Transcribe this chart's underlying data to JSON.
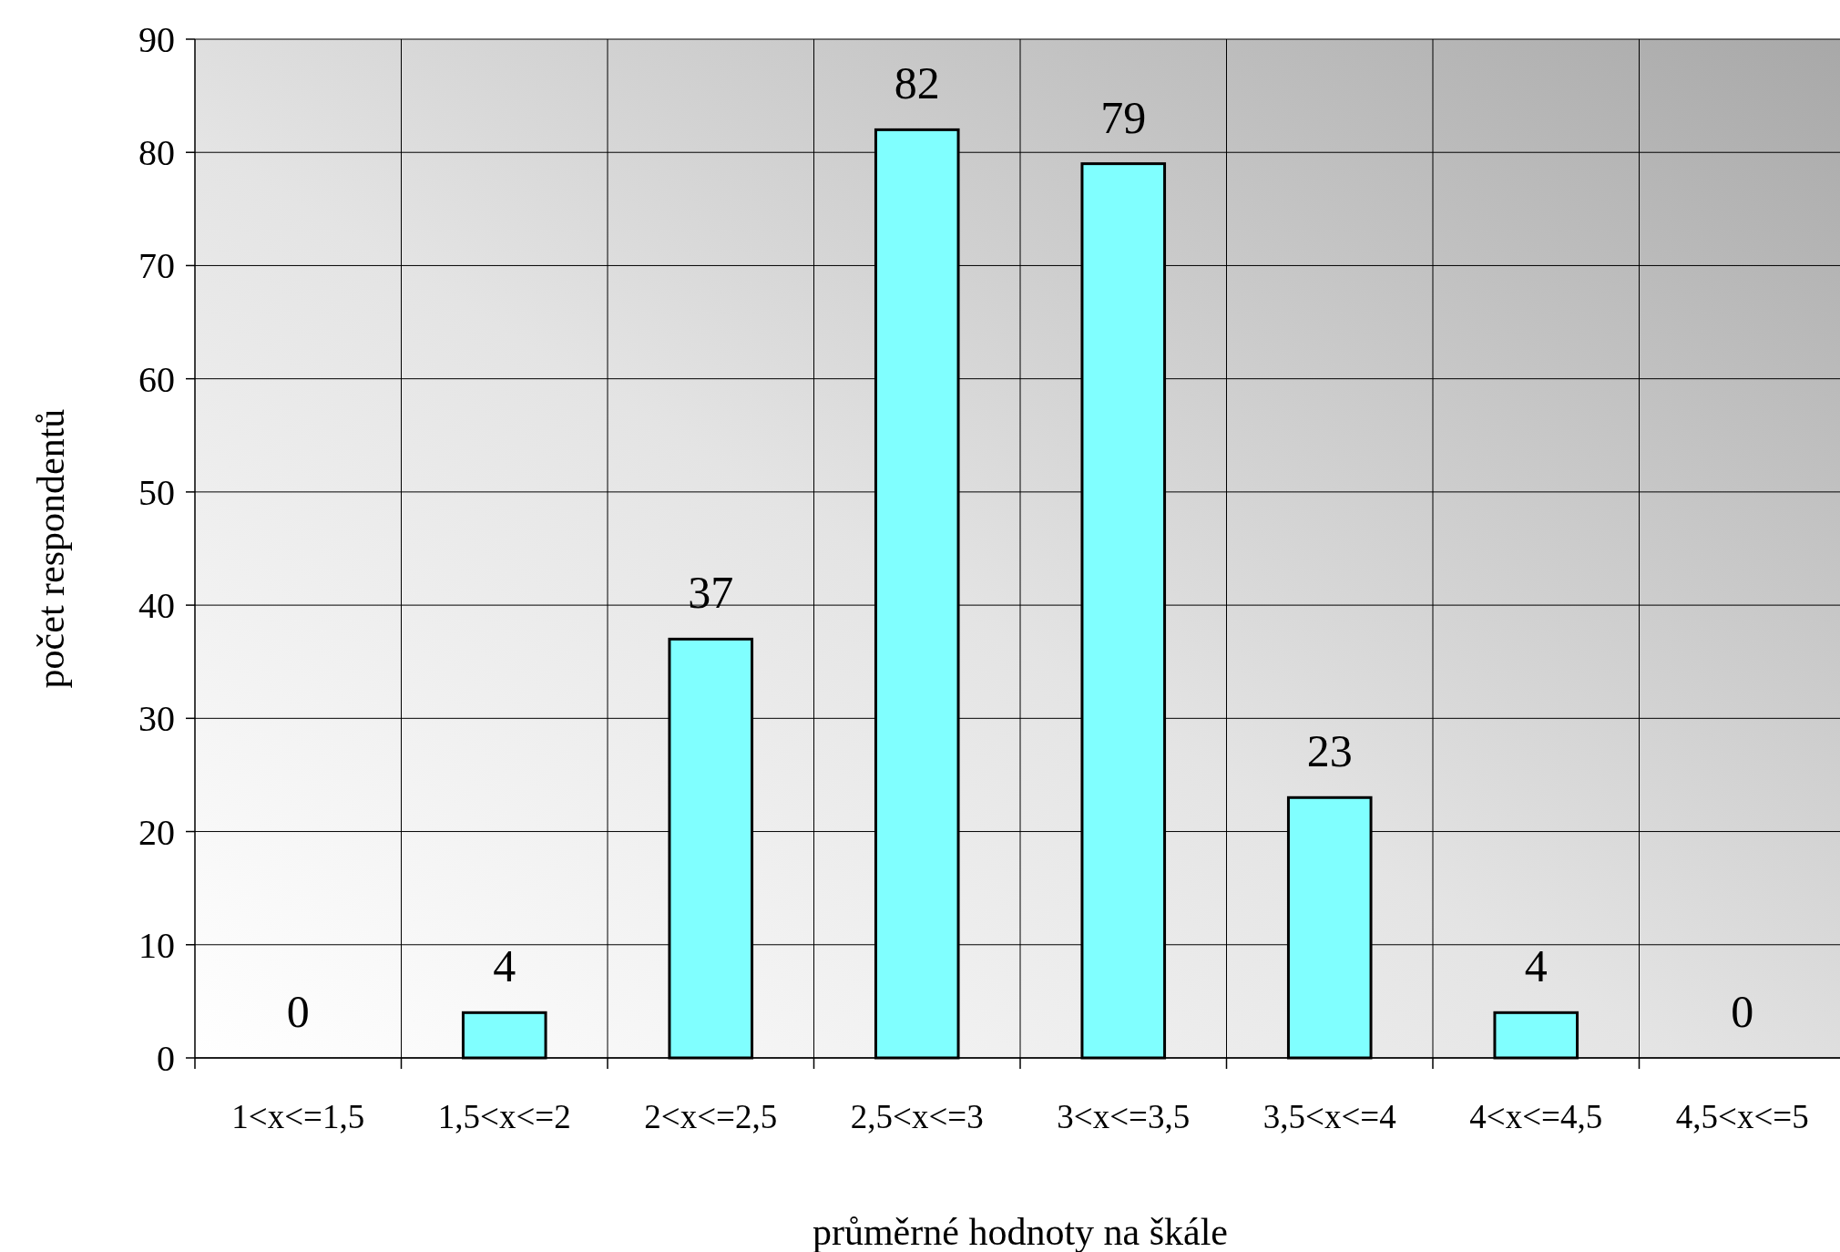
{
  "chart_data": {
    "type": "bar",
    "xlabel": "průměrné hodnoty na škále",
    "ylabel": "počet respondentů",
    "categories": [
      "1<x<=1,5",
      "1,5<x<=2",
      "2<x<=2,5",
      "2,5<x<=3",
      "3<x<=3,5",
      "3,5<x<=4",
      "4<x<=4,5",
      "4,5<x<=5"
    ],
    "values": [
      0,
      4,
      37,
      82,
      79,
      23,
      4,
      0
    ],
    "color": "#80ffff",
    "ylim": [
      0,
      90
    ],
    "yticks": [
      0,
      10,
      20,
      30,
      40,
      50,
      60,
      70,
      80,
      90
    ],
    "grid": true,
    "data_labels": true
  }
}
